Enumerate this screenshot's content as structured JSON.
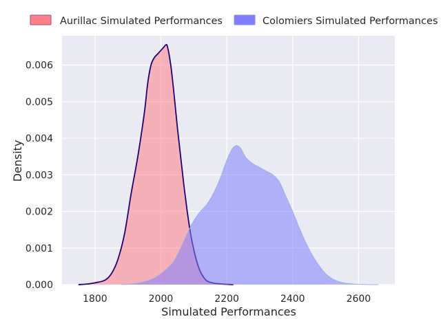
{
  "chart_data": {
    "type": "area",
    "title": "",
    "xlabel": "Simulated Performances",
    "ylabel": "Density",
    "xlim": [
      1700,
      2710
    ],
    "ylim": [
      0,
      0.0068
    ],
    "xticks": [
      1800,
      2000,
      2200,
      2400,
      2600
    ],
    "xtick_labels": [
      "1800",
      "2000",
      "2200",
      "2400",
      "2600"
    ],
    "yticks": [
      0,
      0.001,
      0.002,
      0.003,
      0.004,
      0.005,
      0.006
    ],
    "ytick_labels": [
      "0.000",
      "0.001",
      "0.002",
      "0.003",
      "0.004",
      "0.005",
      "0.006"
    ],
    "grid": true,
    "legend_position": "top",
    "series": [
      {
        "name": "Aurillac Simulated Performances",
        "fill": "#ff8088",
        "line": "#1f007a",
        "x": [
          1750,
          1780,
          1800,
          1830,
          1850,
          1870,
          1890,
          1910,
          1930,
          1950,
          1960,
          1970,
          1980,
          1990,
          2000,
          2010,
          2015,
          2020,
          2030,
          2040,
          2050,
          2060,
          2070,
          2080,
          2090,
          2100,
          2110,
          2120,
          2130,
          2140,
          2160,
          2180,
          2200,
          2220
        ],
        "y": [
          0.0,
          2e-05,
          5e-05,
          0.00012,
          0.0003,
          0.0007,
          0.0014,
          0.0025,
          0.0035,
          0.0047,
          0.0055,
          0.006,
          0.0062,
          0.0063,
          0.0064,
          0.0065,
          0.00655,
          0.0065,
          0.006,
          0.0052,
          0.0043,
          0.0035,
          0.0027,
          0.002,
          0.0014,
          0.00095,
          0.0006,
          0.00035,
          0.0002,
          0.0001,
          4e-05,
          2e-05,
          1e-05,
          0.0
        ]
      },
      {
        "name": "Colomiers Simulated Performances",
        "fill": "#8080ff",
        "line": "#9db3e6",
        "x": [
          1880,
          1900,
          1920,
          1940,
          1960,
          1980,
          2000,
          2020,
          2040,
          2060,
          2080,
          2100,
          2120,
          2140,
          2160,
          2180,
          2200,
          2210,
          2220,
          2230,
          2240,
          2250,
          2260,
          2280,
          2300,
          2320,
          2340,
          2360,
          2380,
          2400,
          2420,
          2440,
          2460,
          2480,
          2500,
          2520,
          2540,
          2560,
          2580,
          2600,
          2620,
          2640,
          2660
        ],
        "y": [
          0.0,
          1e-05,
          3e-05,
          6e-05,
          0.00011,
          0.00018,
          0.0003,
          0.00045,
          0.00065,
          0.001,
          0.0014,
          0.00175,
          0.002,
          0.0022,
          0.0025,
          0.0029,
          0.0034,
          0.0036,
          0.00375,
          0.0038,
          0.00375,
          0.0036,
          0.00345,
          0.0033,
          0.0032,
          0.0031,
          0.003,
          0.0028,
          0.0024,
          0.002,
          0.00155,
          0.00115,
          0.0008,
          0.00052,
          0.0003,
          0.00016,
          8e-05,
          4e-05,
          2e-05,
          1e-05,
          5e-06,
          0.0,
          0.0
        ]
      }
    ]
  },
  "colors": {
    "plot_background": "#eaeaf2",
    "grid": "#ffffff",
    "text": "#262626"
  }
}
